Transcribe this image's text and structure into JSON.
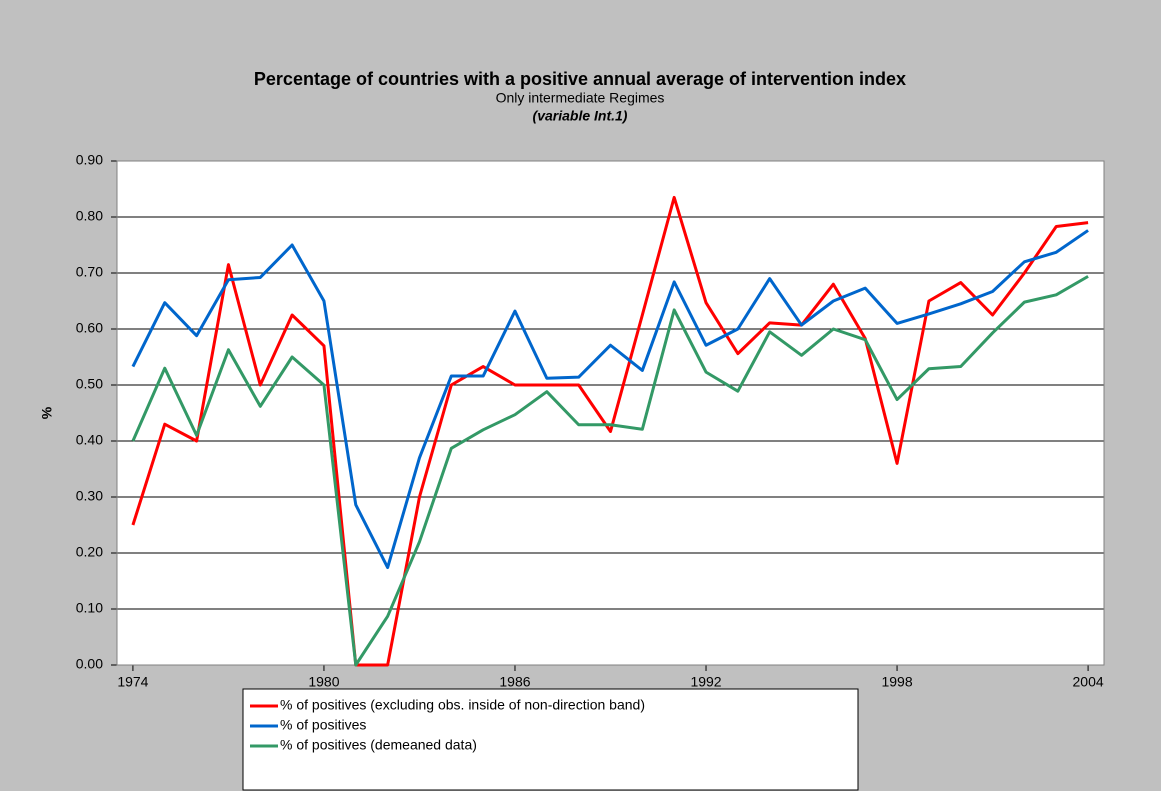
{
  "chart_data": {
    "type": "line",
    "title": "Percentage of countries with a positive annual average of intervention index",
    "subtitle": "Only intermediate Regimes",
    "note": "(variable Int.1)",
    "y_label": "%",
    "x": [
      1974,
      1975,
      1976,
      1977,
      1978,
      1979,
      1980,
      1981,
      1982,
      1983,
      1984,
      1985,
      1986,
      1987,
      1988,
      1989,
      1990,
      1991,
      1992,
      1993,
      1994,
      1995,
      1996,
      1997,
      1998,
      1999,
      2000,
      2001,
      2002,
      2003,
      2004
    ],
    "series": [
      {
        "name": "% of positives (excluding obs. inside of non-direction band)",
        "color": "#ff0000",
        "values": [
          0.25,
          0.43,
          0.4,
          0.715,
          0.5,
          0.625,
          0.57,
          0.0,
          0.0,
          0.3,
          0.5,
          0.533,
          0.5,
          0.5,
          0.5,
          0.417,
          0.625,
          0.835,
          0.647,
          0.556,
          0.611,
          0.607,
          0.68,
          0.583,
          0.36,
          0.65,
          0.683,
          0.625,
          0.7,
          0.783,
          0.79
        ]
      },
      {
        "name": "% of positives",
        "color": "#0066cc",
        "values": [
          0.533,
          0.647,
          0.588,
          0.688,
          0.692,
          0.75,
          0.65,
          0.286,
          0.174,
          0.37,
          0.516,
          0.516,
          0.632,
          0.512,
          0.514,
          0.571,
          0.526,
          0.684,
          0.571,
          0.6,
          0.69,
          0.607,
          0.65,
          0.673,
          0.61,
          0.627,
          0.645,
          0.667,
          0.72,
          0.737,
          0.776
        ]
      },
      {
        "name": "% of positives (demeaned data)",
        "color": "#339966",
        "values": [
          0.4,
          0.53,
          0.41,
          0.563,
          0.462,
          0.55,
          0.5,
          0.0,
          0.087,
          0.22,
          0.387,
          0.42,
          0.447,
          0.488,
          0.429,
          0.429,
          0.421,
          0.634,
          0.523,
          0.489,
          0.595,
          0.553,
          0.6,
          0.581,
          0.474,
          0.529,
          0.533,
          0.593,
          0.648,
          0.661,
          0.694
        ]
      }
    ],
    "xlim": [
      1973.5,
      2004.5
    ],
    "xticks": [
      1974,
      1980,
      1986,
      1992,
      1998,
      2004
    ],
    "ylim": [
      0,
      0.9
    ],
    "yticks": [
      {
        "value": 0,
        "label": "0.00"
      },
      {
        "value": 0.1,
        "label": "0.10"
      },
      {
        "value": 0.2,
        "label": "0.20"
      },
      {
        "value": 0.3,
        "label": "0.30"
      },
      {
        "value": 0.4,
        "label": "0.40"
      },
      {
        "value": 0.5,
        "label": "0.50"
      },
      {
        "value": 0.6,
        "label": "0.60"
      },
      {
        "value": 0.7,
        "label": "0.70"
      },
      {
        "value": 0.8,
        "label": "0.80"
      },
      {
        "value": 0.9,
        "label": "0.90"
      }
    ],
    "grid": true,
    "legend": "bottom"
  }
}
